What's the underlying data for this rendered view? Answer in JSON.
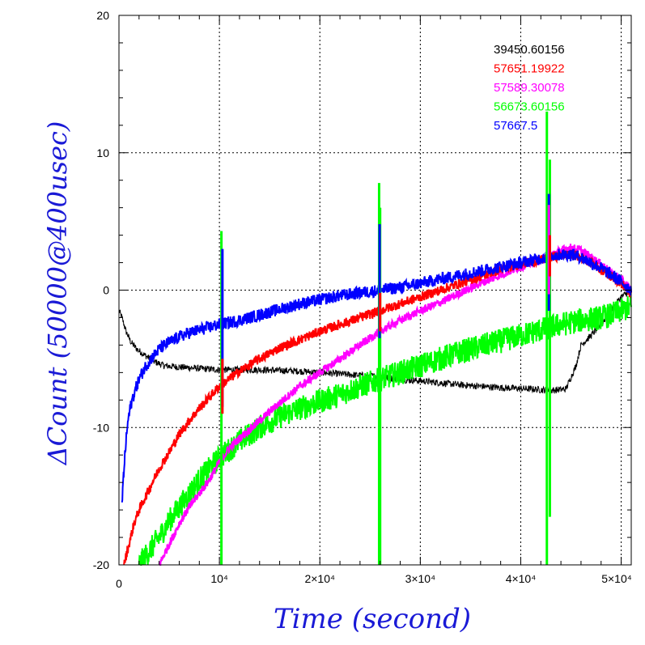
{
  "chart_data": {
    "type": "line",
    "xlabel": "Time (second)",
    "ylabel": "ΔCount (50000@400usec)",
    "xlim": [
      0,
      51000
    ],
    "ylim": [
      -20,
      20
    ],
    "grid": true,
    "legend_position": "top-right",
    "x_tick_labels": [
      "0",
      "10⁴",
      "2×10⁴",
      "3×10⁴",
      "4×10⁴",
      "5×10⁴"
    ],
    "x_tick_values": [
      0,
      10000,
      20000,
      30000,
      40000,
      50000
    ],
    "y_tick_labels": [
      "20",
      "10",
      "0",
      "-10",
      "-20"
    ],
    "y_tick_values": [
      20,
      10,
      0,
      -10,
      -20
    ],
    "series": [
      {
        "name": "39450.60156",
        "color": "#000000",
        "noise": 0.25,
        "x": [
          0,
          300,
          700,
          1200,
          1800,
          2500,
          3500,
          4500,
          6000,
          8000,
          10000,
          14000,
          18000,
          20000,
          22000,
          24000,
          26000,
          28000,
          30000,
          34000,
          38000,
          41000,
          43000,
          44500,
          45500,
          46000,
          47000,
          48000,
          49000,
          50000,
          51000
        ],
        "y": [
          -1.5,
          -2.0,
          -3.0,
          -3.8,
          -4.3,
          -4.7,
          -5.2,
          -5.5,
          -5.6,
          -5.7,
          -5.8,
          -5.8,
          -5.9,
          -6.0,
          -6.1,
          -6.2,
          -6.3,
          -6.5,
          -6.6,
          -6.9,
          -7.1,
          -7.2,
          -7.3,
          -7.2,
          -5.5,
          -4.0,
          -3.3,
          -2.5,
          -1.5,
          -0.5,
          0.0
        ]
      },
      {
        "name": "57651.19922",
        "color": "#ff0000",
        "noise": 0.35,
        "x": [
          500,
          1000,
          1500,
          2000,
          3000,
          4000,
          5000,
          6000,
          7000,
          8000,
          9000,
          10000,
          12000,
          14000,
          16000,
          18000,
          20000,
          22000,
          24000,
          26000,
          28000,
          30000,
          32000,
          34000,
          36000,
          38000,
          40000,
          42000,
          43000,
          44000,
          45000,
          46000,
          47000,
          48000,
          49000,
          50000,
          51000
        ],
        "y": [
          -20,
          -18.5,
          -17.0,
          -16.0,
          -14.5,
          -13.0,
          -11.8,
          -10.5,
          -9.5,
          -8.6,
          -7.8,
          -7.0,
          -5.9,
          -5.0,
          -4.2,
          -3.6,
          -3.0,
          -2.5,
          -2.0,
          -1.5,
          -1.0,
          -0.5,
          0.0,
          0.5,
          1.0,
          1.5,
          1.9,
          2.2,
          2.4,
          2.5,
          2.6,
          2.4,
          2.0,
          1.5,
          1.0,
          0.5,
          -0.3
        ]
      },
      {
        "name": "57589.30078",
        "color": "#ff00ff",
        "noise": 0.3,
        "x": [
          4000,
          5000,
          6000,
          7000,
          8000,
          9000,
          10000,
          11000,
          12000,
          14000,
          16000,
          18000,
          20000,
          22000,
          24000,
          26000,
          28000,
          30000,
          32000,
          34000,
          36000,
          38000,
          40000,
          42000,
          43000,
          44000,
          45000,
          46000,
          47000,
          48000,
          49000,
          50000,
          51000
        ],
        "y": [
          -20,
          -18.5,
          -17.0,
          -15.8,
          -14.8,
          -13.8,
          -12.5,
          -11.5,
          -10.8,
          -9.5,
          -8.2,
          -7.0,
          -6.0,
          -5.0,
          -4.0,
          -3.0,
          -2.2,
          -1.5,
          -0.9,
          -0.2,
          0.5,
          1.1,
          1.7,
          2.2,
          2.6,
          2.9,
          3.1,
          2.9,
          2.4,
          1.9,
          1.3,
          0.8,
          0.0
        ]
      },
      {
        "name": "56673.60156",
        "color": "#00ff00",
        "noise": 0.9,
        "x": [
          2000,
          3000,
          4000,
          5000,
          6000,
          7000,
          8000,
          9000,
          10000,
          12000,
          14000,
          16000,
          18000,
          20000,
          22000,
          24000,
          26000,
          28000,
          30000,
          32000,
          34000,
          36000,
          38000,
          40000,
          42000,
          44000,
          46000,
          48000,
          49000,
          50000,
          51000
        ],
        "y": [
          -20,
          -19.0,
          -18.0,
          -16.8,
          -15.8,
          -14.8,
          -13.8,
          -13.0,
          -12.2,
          -11.0,
          -10.0,
          -9.2,
          -8.6,
          -8.1,
          -7.6,
          -7.0,
          -6.5,
          -6.0,
          -5.5,
          -5.0,
          -4.5,
          -4.1,
          -3.7,
          -3.3,
          -2.9,
          -2.5,
          -2.2,
          -2.0,
          -1.8,
          -1.5,
          -1.2
        ]
      },
      {
        "name": "57667.5",
        "color": "#0000ff",
        "noise": 0.45,
        "x": [
          300,
          500,
          700,
          900,
          1200,
          1600,
          2000,
          2600,
          3200,
          4000,
          5000,
          6000,
          7000,
          8000,
          9000,
          10000,
          12000,
          14000,
          16000,
          18000,
          20000,
          22000,
          24000,
          26000,
          28000,
          30000,
          32000,
          34000,
          36000,
          38000,
          40000,
          42000,
          43000,
          44000,
          45000,
          46000,
          47000,
          48000,
          49000,
          50000,
          51000
        ],
        "y": [
          -15.5,
          -13.0,
          -11.0,
          -9.5,
          -8.3,
          -7.3,
          -6.5,
          -5.6,
          -5.0,
          -4.3,
          -3.8,
          -3.4,
          -3.1,
          -2.9,
          -2.7,
          -2.5,
          -2.2,
          -1.8,
          -1.4,
          -1.0,
          -0.7,
          -0.4,
          -0.2,
          0.0,
          0.2,
          0.5,
          0.8,
          1.1,
          1.4,
          1.7,
          2.0,
          2.3,
          2.5,
          2.6,
          2.6,
          2.4,
          2.0,
          1.6,
          1.1,
          0.6,
          0.0
        ]
      }
    ],
    "spikes": [
      {
        "x": 10200,
        "ymin": -20,
        "ymax": 4.3,
        "color": "#00ff00"
      },
      {
        "x": 10300,
        "ymin": -8.5,
        "ymax": 3.0,
        "color": "#0000ff"
      },
      {
        "x": 10300,
        "ymin": -9.0,
        "ymax": -5.0,
        "color": "#ff0000"
      },
      {
        "x": 25900,
        "ymin": -20,
        "ymax": 7.8,
        "color": "#00ff00"
      },
      {
        "x": 26000,
        "ymin": -20,
        "ymax": 6.0,
        "color": "#00ff00"
      },
      {
        "x": 25950,
        "ymin": -3.5,
        "ymax": 4.8,
        "color": "#0000ff"
      },
      {
        "x": 26000,
        "ymin": -3.0,
        "ymax": -0.2,
        "color": "#ff0000"
      },
      {
        "x": 42600,
        "ymin": -20,
        "ymax": 13.0,
        "color": "#00ff00"
      },
      {
        "x": 42900,
        "ymin": -16.5,
        "ymax": 9.5,
        "color": "#00ff00"
      },
      {
        "x": 42800,
        "ymin": -1.5,
        "ymax": 7.0,
        "color": "#0000ff"
      },
      {
        "x": 42800,
        "ymin": -0.3,
        "ymax": 6.2,
        "color": "#ff00ff"
      },
      {
        "x": 42900,
        "ymin": 1.0,
        "ymax": 4.0,
        "color": "#ff0000"
      }
    ]
  }
}
